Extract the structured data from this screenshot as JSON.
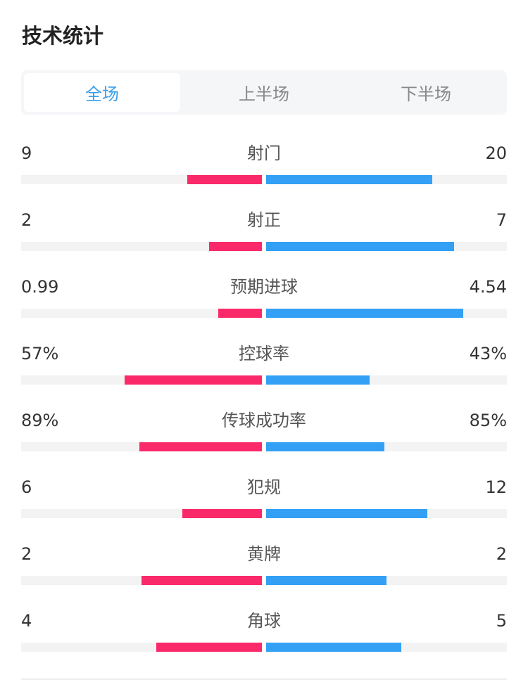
{
  "title": "技术统计",
  "tabs": [
    {
      "label": "全场",
      "active": true
    },
    {
      "label": "上半场",
      "active": false
    },
    {
      "label": "下半场",
      "active": false
    }
  ],
  "colors": {
    "home": "#fa2a6a",
    "away": "#33a0f5",
    "active_tab": "#3a9ee8"
  },
  "stats": [
    {
      "label": "射门",
      "home": "9",
      "away": "20",
      "home_frac": 0.31,
      "away_frac": 0.69
    },
    {
      "label": "射正",
      "home": "2",
      "away": "7",
      "home_frac": 0.22,
      "away_frac": 0.78
    },
    {
      "label": "预期进球",
      "home": "0.99",
      "away": "4.54",
      "home_frac": 0.18,
      "away_frac": 0.82
    },
    {
      "label": "控球率",
      "home": "57%",
      "away": "43%",
      "home_frac": 0.57,
      "away_frac": 0.43
    },
    {
      "label": "传球成功率",
      "home": "89%",
      "away": "85%",
      "home_frac": 0.51,
      "away_frac": 0.49
    },
    {
      "label": "犯规",
      "home": "6",
      "away": "12",
      "home_frac": 0.33,
      "away_frac": 0.67
    },
    {
      "label": "黄牌",
      "home": "2",
      "away": "2",
      "home_frac": 0.5,
      "away_frac": 0.5
    },
    {
      "label": "角球",
      "home": "4",
      "away": "5",
      "home_frac": 0.44,
      "away_frac": 0.56
    }
  ]
}
